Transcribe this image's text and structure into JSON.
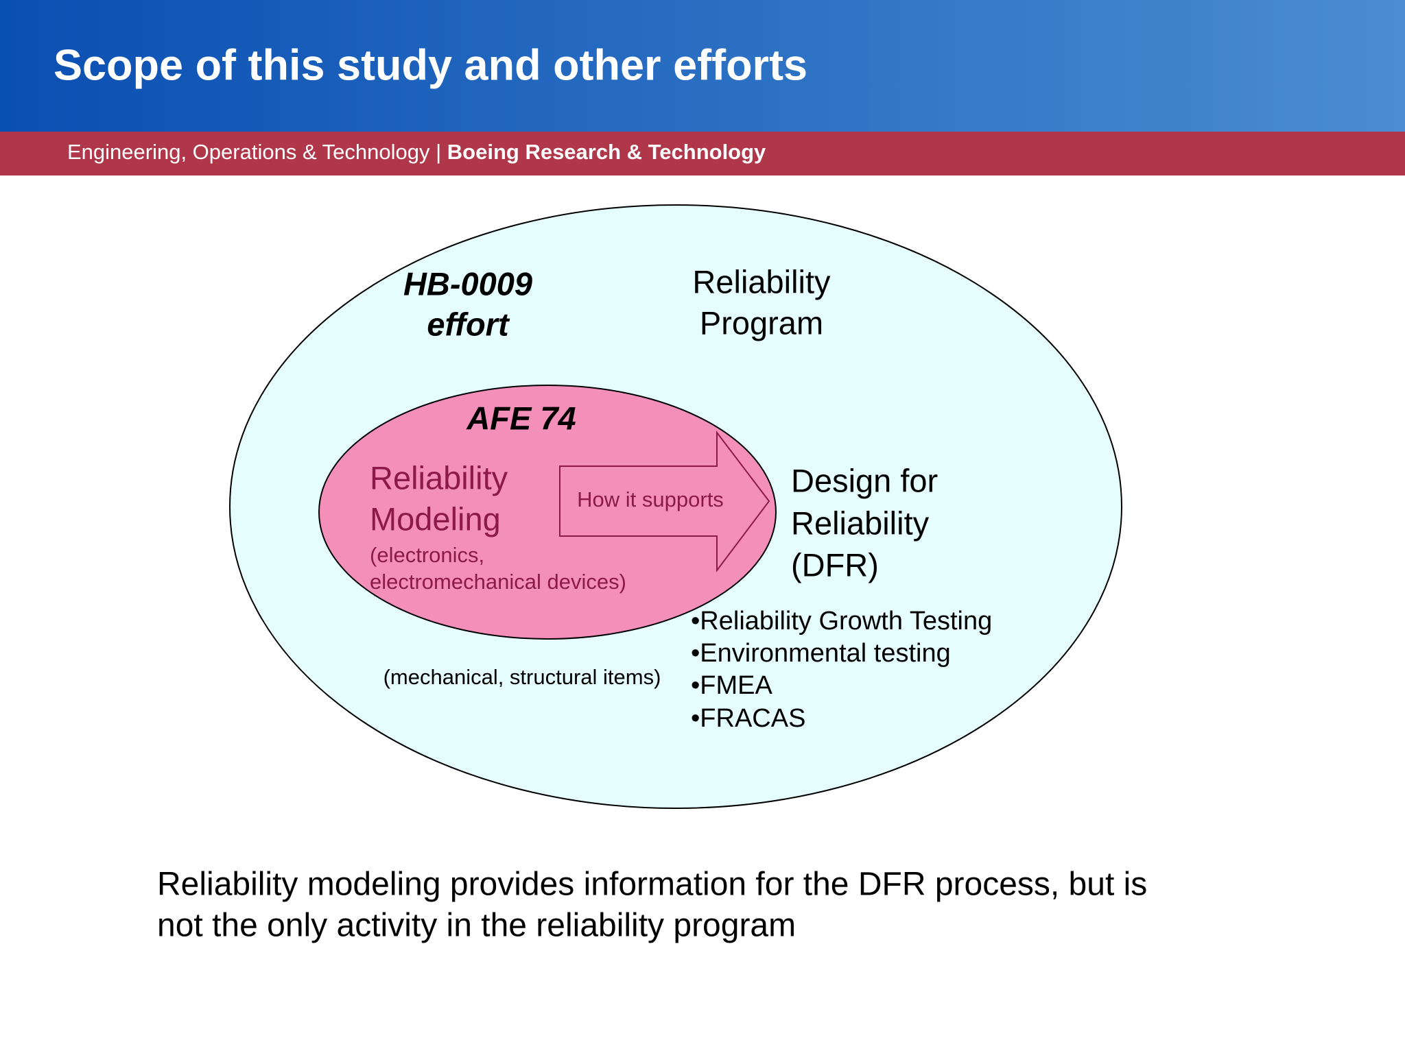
{
  "header": {
    "title": "Scope of this study and other efforts",
    "subtitle": "Engineering, Operations & Technology | ",
    "subtitle_bold": "Boeing Research & Technology"
  },
  "diagram": {
    "outer_label": [
      "HB-0009",
      "effort"
    ],
    "program_label": [
      "Reliability",
      "Program"
    ],
    "inner_title": "AFE 74",
    "modeling_label": [
      "Reliability",
      "Modeling"
    ],
    "modeling_note": [
      "(electronics,",
      "electromechanical devices)"
    ],
    "arrow_label": "How it supports",
    "dfr_label": [
      "Design for",
      "Reliability",
      "(DFR)"
    ],
    "dfr_items": [
      "•Reliability Growth Testing",
      "•Environmental testing",
      "•FMEA",
      "•FRACAS"
    ],
    "outer_note": "(mechanical, structural items)"
  },
  "caption": [
    "Reliability modeling provides information for the DFR process, but is",
    "not the only activity in the reliability program"
  ]
}
